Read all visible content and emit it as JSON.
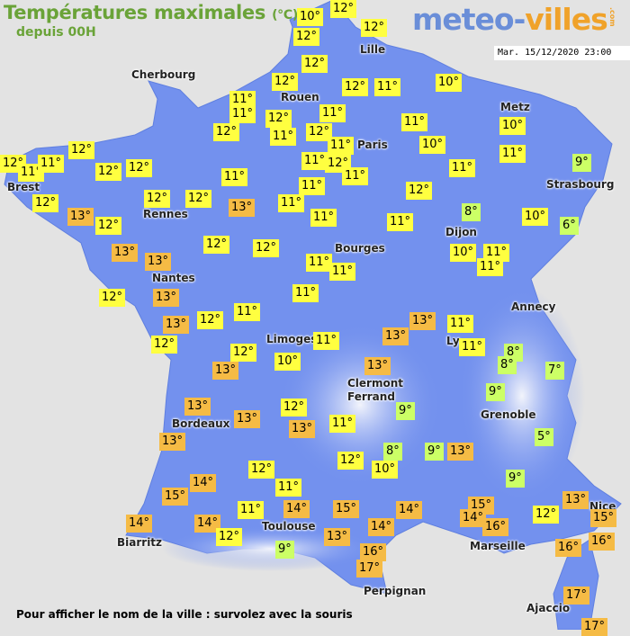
{
  "header": {
    "title": "Températures maximales",
    "unit": "(°C)",
    "subtitle": "depuis 00H",
    "logo_main": "meteo-",
    "logo_accent": "villes",
    "logo_suffix": ".com",
    "datetime": "Mar. 15/12/2020 23:00"
  },
  "colors": {
    "background": "#e3e3e3",
    "land": "#7391ee",
    "relief": "#dfe6f7",
    "temp_mild": "#ffff40",
    "temp_warm": "#f5bb45",
    "temp_cool": "#ccff66",
    "title": "#6aa338"
  },
  "cities": [
    "Lille",
    "Cherbourg",
    "Rouen",
    "Metz",
    "Paris",
    "Brest",
    "Strasbourg",
    "Rennes",
    "Dijon",
    "Bourges",
    "Nantes",
    "Annecy",
    "Limoges",
    "Ly",
    "Clermont",
    "Ferrand",
    "Grenoble",
    "Bordeaux",
    "Toulouse",
    "Nice",
    "Biarritz",
    "Marseille",
    "Perpignan",
    "Ajaccio"
  ],
  "temperatures": [
    "12°",
    "10°",
    "12°",
    "12°",
    "12°",
    "12°",
    "12°",
    "11°",
    "10°",
    "11°",
    "11°",
    "12°",
    "11°",
    "10°",
    "11°",
    "12°",
    "11°",
    "12°",
    "11°",
    "10°",
    "11°",
    "12°",
    "12°",
    "11°",
    "11°",
    "12°",
    "12°",
    "11°",
    "12°",
    "11°",
    "11°",
    "9°",
    "11°",
    "11°",
    "12°",
    "12°",
    "13°",
    "12°",
    "12°",
    "13°",
    "11°",
    "11°",
    "11°",
    "8°",
    "10°",
    "6°",
    "12°",
    "12°",
    "12°",
    "13°",
    "13°",
    "10°",
    "11°",
    "11°",
    "11°",
    "11°",
    "12°",
    "13°",
    "11°",
    "13°",
    "12°",
    "11°",
    "13°",
    "11°",
    "12°",
    "11°",
    "11°",
    "8°",
    "8°",
    "7°",
    "12°",
    "13°",
    "10°",
    "13°",
    "13°",
    "9°",
    "9°",
    "13°",
    "12°",
    "13°",
    "13°",
    "11°",
    "13°",
    "8°",
    "9°",
    "13°",
    "12°",
    "10°",
    "9°",
    "5°",
    "12°",
    "14°",
    "15°",
    "11°",
    "13°",
    "15°",
    "14°",
    "16°",
    "12°",
    "15°",
    "11°",
    "14°",
    "15°",
    "14°",
    "14°",
    "14°",
    "12°",
    "14°",
    "13°",
    "16°",
    "16°",
    "16°",
    "9°",
    "17°",
    "17°",
    "17°"
  ],
  "footer": "Pour afficher le nom de la ville : survolez avec la souris"
}
